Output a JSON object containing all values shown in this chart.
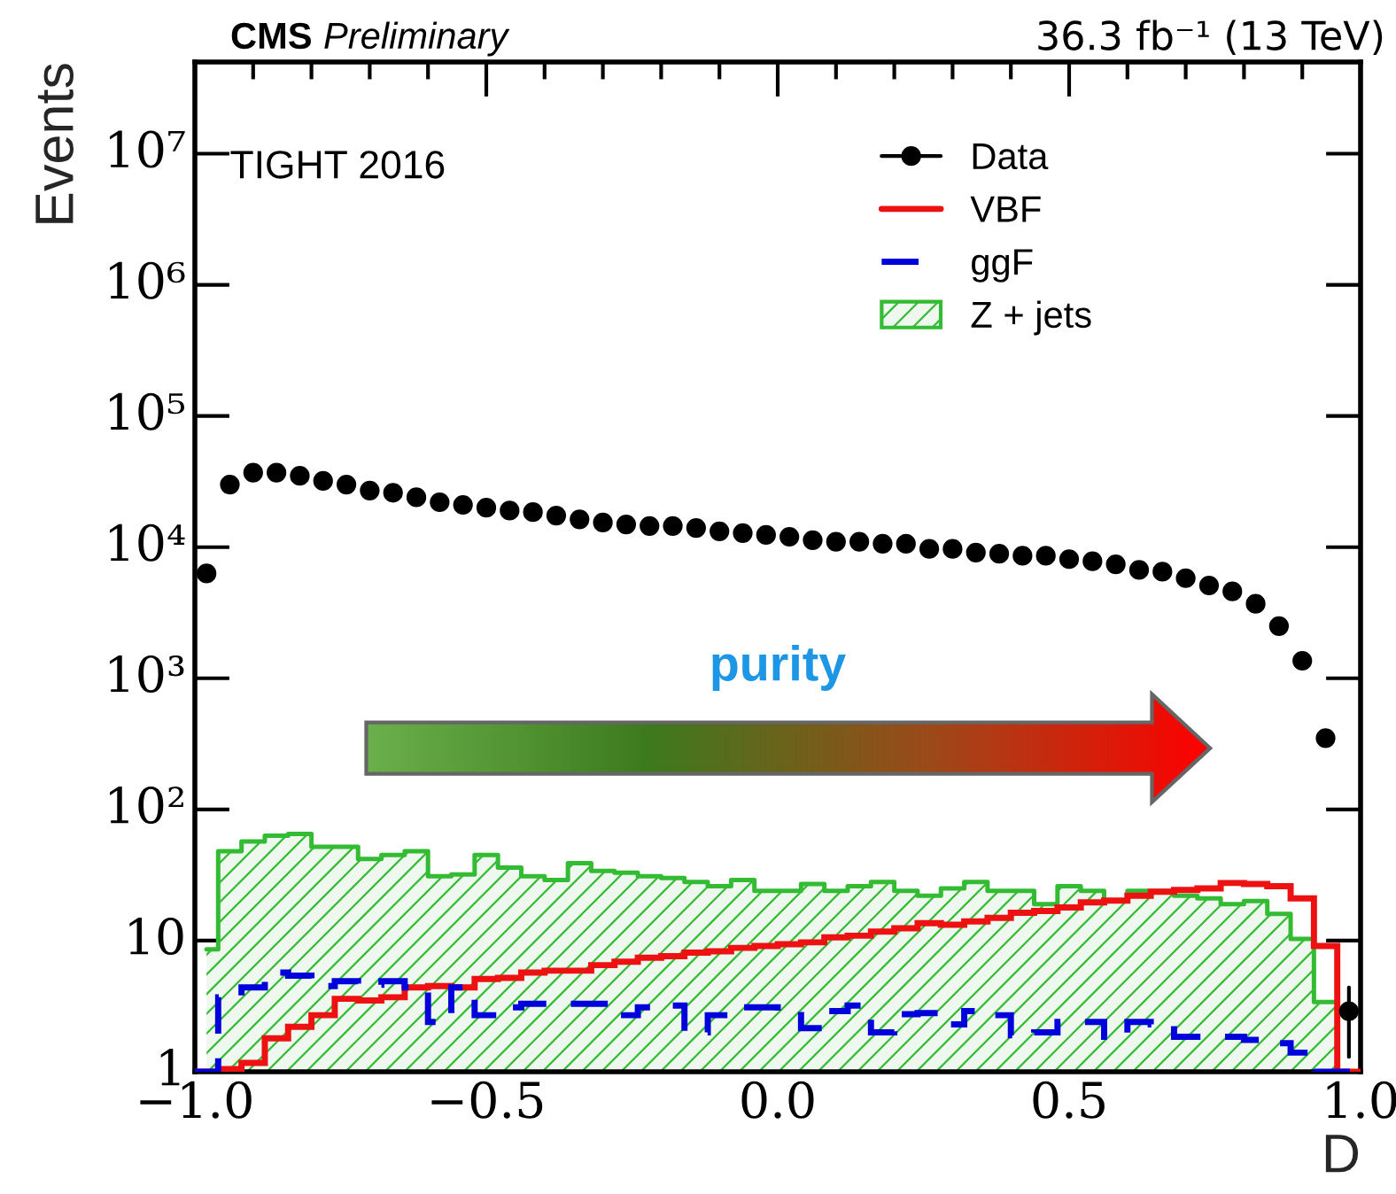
{
  "chart_data": {
    "type": "histogram",
    "title": "CMS Preliminary",
    "subtitle": "36.3 fb⁻¹ (13 TeV)",
    "xlabel": "D",
    "ylabel": "Events",
    "annotations": [
      "TIGHT 2016",
      "purity"
    ],
    "bins": [
      -1.0,
      -0.96,
      -0.92,
      -0.88,
      -0.84,
      -0.8,
      -0.76,
      -0.72,
      -0.68,
      -0.64,
      -0.6,
      -0.56,
      -0.52,
      -0.48,
      -0.44,
      -0.4,
      -0.36,
      -0.32,
      -0.28,
      -0.24,
      -0.2,
      -0.16,
      -0.12,
      -0.08,
      -0.04,
      0.0,
      0.04,
      0.08,
      0.12,
      0.16,
      0.2,
      0.24,
      0.28,
      0.32,
      0.36,
      0.4,
      0.44,
      0.48,
      0.52,
      0.56,
      0.6,
      0.64,
      0.68,
      0.72,
      0.76,
      0.8,
      0.84,
      0.88,
      0.92,
      0.96,
      1.0
    ],
    "series": [
      {
        "name": "Data",
        "type": "scatter",
        "color": "#000000",
        "marker": "circle",
        "x": [
          -0.98,
          -0.94,
          -0.9,
          -0.86,
          -0.82,
          -0.78,
          -0.74,
          -0.7,
          -0.66,
          -0.62,
          -0.58,
          -0.54,
          -0.5,
          -0.46,
          -0.42,
          -0.38,
          -0.34,
          -0.3,
          -0.26,
          -0.22,
          -0.18,
          -0.14,
          -0.1,
          -0.06,
          -0.02,
          0.02,
          0.06,
          0.1,
          0.14,
          0.18,
          0.22,
          0.26,
          0.3,
          0.34,
          0.38,
          0.42,
          0.46,
          0.5,
          0.54,
          0.58,
          0.62,
          0.66,
          0.7,
          0.74,
          0.78,
          0.82,
          0.86,
          0.9,
          0.94,
          0.98
        ],
        "values": [
          6300,
          30000,
          37000,
          37000,
          35000,
          32000,
          30000,
          27000,
          26000,
          24000,
          22000,
          21000,
          20000,
          19000,
          18500,
          17400,
          16300,
          15400,
          14900,
          14500,
          14500,
          14000,
          13200,
          12800,
          12400,
          12000,
          11300,
          11000,
          11000,
          10600,
          10600,
          9700,
          9700,
          9100,
          8900,
          8600,
          8600,
          8100,
          7800,
          7400,
          6700,
          6500,
          5800,
          5100,
          4600,
          3700,
          2500,
          1360,
          350,
          2.9
        ],
        "errors": [
          null,
          null,
          null,
          null,
          null,
          null,
          null,
          null,
          null,
          null,
          null,
          null,
          null,
          null,
          null,
          null,
          null,
          null,
          null,
          null,
          null,
          null,
          null,
          null,
          null,
          null,
          null,
          null,
          null,
          null,
          null,
          null,
          null,
          null,
          null,
          null,
          null,
          null,
          null,
          null,
          null,
          null,
          null,
          null,
          null,
          null,
          null,
          null,
          null,
          [
            1.3,
            4.4
          ]
        ]
      },
      {
        "name": "VBF",
        "color": "#ee1111",
        "line_style": "solid",
        "values": [
          1,
          1.05,
          1.17,
          1.8,
          2.2,
          2.7,
          3.6,
          3.5,
          3.7,
          4.4,
          4.5,
          4.4,
          5.1,
          5.2,
          5.7,
          5.9,
          5.9,
          6.5,
          6.9,
          7.4,
          7.6,
          8.1,
          8.3,
          8.8,
          9.1,
          9.4,
          9.7,
          10.6,
          10.9,
          11.7,
          12.4,
          13.6,
          13.2,
          14.0,
          14.9,
          16.3,
          16.8,
          17.9,
          19.6,
          20.2,
          22,
          23.6,
          24.3,
          25,
          27.5,
          27,
          26,
          21,
          9.1,
          1
        ]
      },
      {
        "name": "ggF",
        "color": "#0000dd",
        "line_style": "dashed",
        "values": [
          1.0,
          3.7,
          4.4,
          5.7,
          5.4,
          4.5,
          4.9,
          4.6,
          4.9,
          4.4,
          2.4,
          4.4,
          2.7,
          3.1,
          3.3,
          3.3,
          3.3,
          3.3,
          2.7,
          3.1,
          3.2,
          2.0,
          2.7,
          3.1,
          3.1,
          2.9,
          2.15,
          2.9,
          3.2,
          2.0,
          2.75,
          2.8,
          2.3,
          2.9,
          2.7,
          1.9,
          2.0,
          2.4,
          2.4,
          1.85,
          2.4,
          2.3,
          1.85,
          1.85,
          1.85,
          1.75,
          1.65,
          1.4,
          1.0,
          1.0
        ]
      },
      {
        "name": "Z + jets",
        "type": "area",
        "color": "#33bb33",
        "x": [
          -0.98,
          -0.94,
          -0.9,
          -0.86,
          -0.82,
          -0.78,
          -0.74,
          -0.7,
          -0.66,
          -0.62,
          -0.58,
          -0.54,
          -0.5,
          -0.46,
          -0.42,
          -0.38,
          -0.34,
          -0.3,
          -0.26,
          -0.22,
          -0.18,
          -0.14,
          -0.1,
          -0.06,
          -0.02,
          0.02,
          0.06,
          0.1,
          0.14,
          0.18,
          0.22,
          0.26,
          0.3,
          0.34,
          0.38,
          0.42,
          0.46,
          0.5,
          0.54,
          0.58,
          0.62,
          0.66,
          0.7,
          0.74,
          0.78,
          0.82,
          0.86,
          0.9,
          0.94,
          0.98
        ],
        "values": [
          8.6,
          48,
          57,
          63,
          65,
          52,
          52,
          42,
          45,
          48,
          31,
          32,
          45,
          36,
          31,
          29,
          39,
          34,
          33,
          31,
          30,
          28,
          26,
          29,
          24,
          24,
          27,
          24,
          26,
          28,
          24,
          22,
          25,
          28,
          24,
          24,
          19,
          26,
          24,
          20,
          24,
          24,
          22,
          21,
          19,
          20,
          16,
          10.3,
          3.4,
          1
        ]
      }
    ],
    "log": "y",
    "xlim": [
      -1.0,
      1.0
    ],
    "ylim": [
      1,
      50000000
    ],
    "xticks": [
      {
        "value": -1.0,
        "label": "−1.0"
      },
      {
        "value": -0.5,
        "label": "−0.5"
      },
      {
        "value": 0.0,
        "label": "0.0"
      },
      {
        "value": 0.5,
        "label": "0.5"
      },
      {
        "value": 1.0,
        "label": "1.0"
      }
    ],
    "yticks": [
      1,
      10,
      {
        "value": 100,
        "label": "10²"
      },
      {
        "value": 1000,
        "label": "10³"
      },
      {
        "value": 10000,
        "label": "10⁴"
      },
      {
        "value": 100000,
        "label": "10⁵"
      },
      {
        "value": 1000000,
        "label": "10⁶"
      },
      {
        "value": 10000000,
        "label": "10⁷"
      }
    ],
    "grid": false,
    "legend": "top right"
  }
}
